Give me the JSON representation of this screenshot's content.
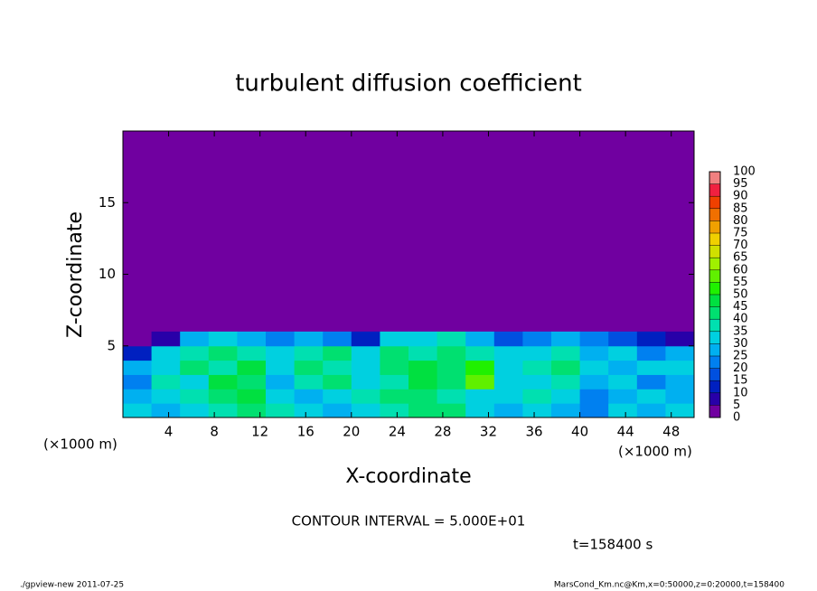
{
  "chart_data": {
    "type": "heatmap",
    "title": "turbulent diffusion coefficient",
    "x_label": "X-coordinate",
    "y_label": "Z-coordinate",
    "x_unit": "(×1000 m)",
    "x_unit_right": "(×1000 m)",
    "contour_note": "CONTOUR INTERVAL = 5.000E+01",
    "time_note": "t=158400 s",
    "footer_left": "./gpview-new  2011-07-25",
    "footer_right": "MarsCond_Km.nc@Km,x=0:50000,z=0:20000,t=158400",
    "xlim": [
      0,
      50
    ],
    "ylim": [
      0,
      20
    ],
    "xticks": [
      4,
      8,
      12,
      16,
      20,
      24,
      28,
      32,
      36,
      40,
      44,
      48
    ],
    "yticks": [
      5,
      10,
      15
    ],
    "x": [
      1.25,
      3.75,
      6.25,
      8.75,
      11.25,
      13.75,
      16.25,
      18.75,
      21.25,
      23.75,
      26.25,
      28.75,
      31.25,
      33.75,
      36.25,
      38.75,
      41.25,
      43.75,
      46.25,
      48.75
    ],
    "z": [
      0.5,
      1.5,
      2.5,
      3.5,
      4.5,
      5.5
    ],
    "values": [
      [
        30,
        25,
        30,
        35,
        40,
        35,
        30,
        25,
        30,
        35,
        40,
        40,
        30,
        25,
        30,
        25,
        20,
        30,
        25,
        30
      ],
      [
        25,
        30,
        35,
        40,
        45,
        30,
        25,
        30,
        35,
        40,
        40,
        35,
        30,
        30,
        35,
        30,
        20,
        25,
        30,
        25
      ],
      [
        20,
        35,
        30,
        45,
        40,
        25,
        35,
        40,
        30,
        35,
        45,
        40,
        55,
        30,
        30,
        35,
        25,
        30,
        20,
        25
      ],
      [
        25,
        30,
        40,
        35,
        45,
        30,
        40,
        35,
        30,
        40,
        45,
        40,
        50,
        30,
        35,
        40,
        30,
        25,
        30,
        30
      ],
      [
        10,
        30,
        35,
        40,
        35,
        30,
        35,
        40,
        30,
        40,
        35,
        40,
        35,
        30,
        30,
        35,
        25,
        30,
        20,
        25
      ],
      [
        0,
        5,
        25,
        30,
        25,
        20,
        25,
        20,
        10,
        30,
        30,
        35,
        25,
        15,
        20,
        25,
        20,
        15,
        10,
        5
      ]
    ],
    "colorbar": {
      "levels": [
        0,
        5,
        10,
        15,
        20,
        25,
        30,
        35,
        40,
        45,
        50,
        55,
        60,
        65,
        70,
        75,
        80,
        85,
        90,
        95,
        100
      ],
      "colors": [
        "#7000a0",
        "#2800a8",
        "#0020c0",
        "#0050e0",
        "#0080f0",
        "#00b0f0",
        "#00d0e0",
        "#00e0b0",
        "#00e070",
        "#00e040",
        "#20f000",
        "#60f000",
        "#a0f000",
        "#d0e000",
        "#f0d000",
        "#f0a000",
        "#f07000",
        "#f04000",
        "#f02040",
        "#f08080"
      ]
    }
  }
}
